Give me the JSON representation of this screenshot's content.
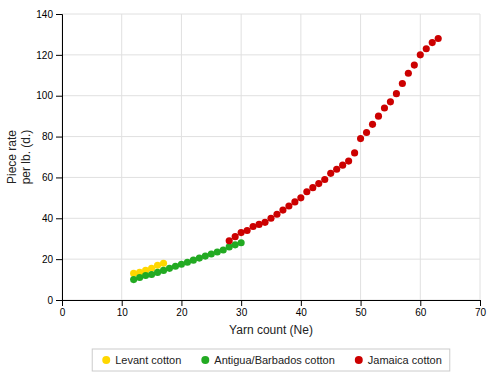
{
  "chart_data": {
    "type": "scatter",
    "xlabel": "Yarn count (Ne)",
    "ylabel": "Piece rate\nper lb. (d.)",
    "series": [
      {
        "name": "Levant cotton",
        "color": "#FFD700",
        "x": [
          12,
          13,
          14,
          15,
          16,
          17
        ],
        "values": [
          13.0,
          13.5,
          14.5,
          15.5,
          17.0,
          18.0
        ]
      },
      {
        "name": "Antigua/Barbados cotton",
        "color": "#22AA22",
        "x": [
          12,
          13,
          14,
          15,
          16,
          17,
          18,
          19,
          20,
          21,
          22,
          23,
          24,
          25,
          26,
          27,
          28,
          29,
          30
        ],
        "values": [
          10.0,
          11.0,
          12.0,
          12.5,
          13.5,
          14.5,
          15.5,
          16.5,
          17.5,
          18.5,
          19.5,
          20.5,
          21.5,
          22.5,
          23.5,
          24.5,
          26.0,
          27.0,
          28.0
        ]
      },
      {
        "name": "Jamaica cotton",
        "color": "#CC0000",
        "x": [
          28,
          29,
          30,
          31,
          32,
          33,
          34,
          35,
          36,
          37,
          38,
          39,
          40,
          41,
          42,
          43,
          44,
          45,
          46,
          47,
          48,
          49,
          50,
          51,
          52,
          53,
          54,
          55,
          56,
          57,
          58,
          59,
          60,
          61,
          62,
          63
        ],
        "values": [
          29,
          31,
          33,
          34,
          36,
          37,
          38,
          40,
          42,
          44,
          46,
          48,
          50,
          53,
          55,
          57,
          59,
          62,
          64,
          66,
          68,
          72,
          79,
          82,
          86,
          90,
          94,
          97,
          101,
          106,
          111,
          115,
          120,
          123,
          126,
          128
        ]
      }
    ],
    "xlim": [
      0,
      70
    ],
    "ylim": [
      0,
      140
    ],
    "xticks": [
      0,
      10,
      20,
      30,
      40,
      50,
      60,
      70
    ],
    "yticks": [
      0,
      20,
      40,
      60,
      80,
      100,
      120,
      140
    ],
    "grid": true,
    "legend": "bottom",
    "marker": "circle"
  }
}
